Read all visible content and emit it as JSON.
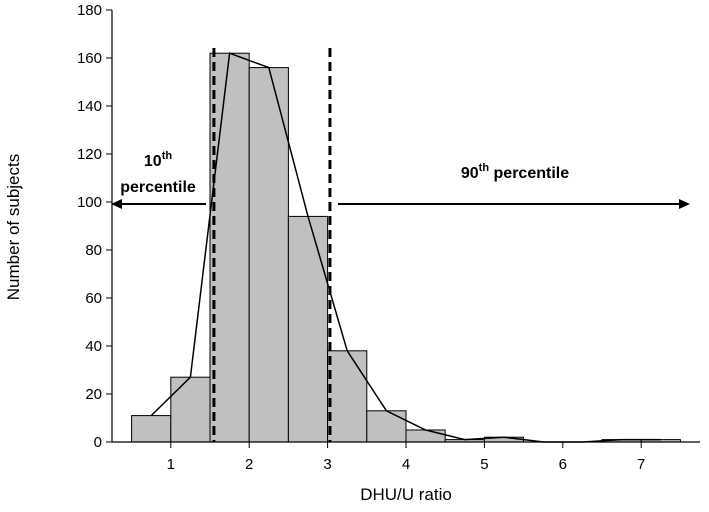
{
  "chart_data": {
    "type": "bar",
    "subtype": "histogram-with-frequency-polygon",
    "title": "",
    "xlabel": "DHU/U ratio",
    "ylabel": "Number of subjects",
    "xlim": [
      0.25,
      7.75
    ],
    "ylim": [
      0,
      180
    ],
    "xticks": [
      1,
      2,
      3,
      4,
      5,
      6,
      7
    ],
    "yticks": [
      0,
      20,
      40,
      60,
      80,
      100,
      120,
      140,
      160,
      180
    ],
    "grid": false,
    "bin_width": 0.5,
    "bins": [
      {
        "start": 0.5,
        "end": 1.0,
        "value": 11
      },
      {
        "start": 1.0,
        "end": 1.5,
        "value": 27
      },
      {
        "start": 1.5,
        "end": 2.0,
        "value": 162
      },
      {
        "start": 2.0,
        "end": 2.5,
        "value": 156
      },
      {
        "start": 2.5,
        "end": 3.0,
        "value": 94
      },
      {
        "start": 3.0,
        "end": 3.5,
        "value": 38
      },
      {
        "start": 3.5,
        "end": 4.0,
        "value": 13
      },
      {
        "start": 4.0,
        "end": 4.5,
        "value": 5
      },
      {
        "start": 4.5,
        "end": 5.0,
        "value": 1
      },
      {
        "start": 5.0,
        "end": 5.5,
        "value": 2
      },
      {
        "start": 5.5,
        "end": 6.0,
        "value": 0
      },
      {
        "start": 6.0,
        "end": 6.5,
        "value": 0
      },
      {
        "start": 6.5,
        "end": 7.0,
        "value": 1
      },
      {
        "start": 7.0,
        "end": 7.5,
        "value": 1
      }
    ],
    "polygon": {
      "x": [
        0.75,
        1.25,
        1.75,
        2.25,
        2.75,
        3.25,
        3.75,
        4.25,
        4.75,
        5.25,
        5.75,
        6.25,
        6.75,
        7.25
      ],
      "y": [
        11,
        27,
        162,
        156,
        94,
        38,
        13,
        5,
        1,
        2,
        0,
        0,
        1,
        1
      ]
    },
    "reference_lines": [
      {
        "name": "10th percentile",
        "x": 1.55,
        "style": "dashed"
      },
      {
        "name": "90th percentile",
        "x": 3.03,
        "style": "dashed"
      }
    ],
    "annotations": {
      "p10": {
        "number": "10",
        "suffix": "th",
        "word": "percentile",
        "arrow": "left"
      },
      "p90": {
        "number": "90",
        "suffix": "th",
        "word": "percentile",
        "arrow": "right"
      }
    },
    "colors": {
      "bar_fill": "#c0c0c0",
      "bar_stroke": "#000000",
      "line": "#000000"
    }
  }
}
